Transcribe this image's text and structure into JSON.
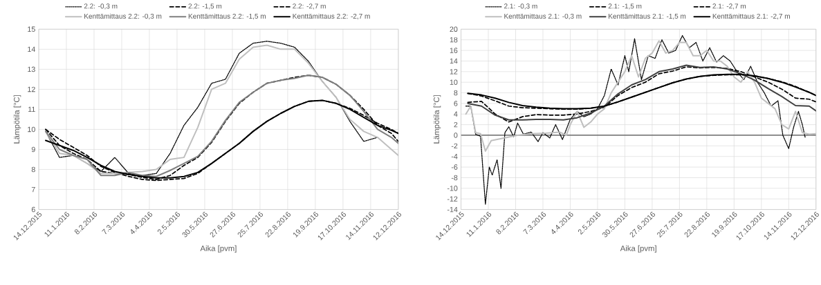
{
  "chart_data": [
    {
      "type": "line",
      "xlabel": "Aika [pvm]",
      "ylabel": "Lämpötila [°C]",
      "grid": true,
      "legend": "top",
      "xlim": [
        "2015-12-14",
        "2016-12-12"
      ],
      "xticks": [
        {
          "value": "2015-12-14",
          "label": "14.12.2015"
        },
        {
          "value": "2016-01-11",
          "label": "11.1.2016"
        },
        {
          "value": "2016-02-08",
          "label": "8.2.2016"
        },
        {
          "value": "2016-03-07",
          "label": "7.3.2016"
        },
        {
          "value": "2016-04-04",
          "label": "4.4.2016"
        },
        {
          "value": "2016-05-02",
          "label": "2.5.2016"
        },
        {
          "value": "2016-05-30",
          "label": "30.5.2016"
        },
        {
          "value": "2016-06-27",
          "label": "27.6.2016"
        },
        {
          "value": "2016-07-25",
          "label": "25.7.2016"
        },
        {
          "value": "2016-08-22",
          "label": "22.8.2016"
        },
        {
          "value": "2016-09-19",
          "label": "19.9.2016"
        },
        {
          "value": "2016-10-17",
          "label": "17.10.2016"
        },
        {
          "value": "2016-11-14",
          "label": "14.11.2016"
        },
        {
          "value": "2016-12-12",
          "label": "12.12.2016"
        }
      ],
      "ylim": [
        6,
        15
      ],
      "yticks": [
        6,
        7,
        8,
        9,
        10,
        11,
        12,
        13,
        14,
        15
      ],
      "x": [
        "2015-12-21",
        "2016-01-04",
        "2016-01-18",
        "2016-02-01",
        "2016-02-15",
        "2016-02-29",
        "2016-03-14",
        "2016-03-28",
        "2016-04-11",
        "2016-04-25",
        "2016-05-09",
        "2016-05-23",
        "2016-06-06",
        "2016-06-20",
        "2016-07-04",
        "2016-07-18",
        "2016-08-01",
        "2016-08-15",
        "2016-08-29",
        "2016-09-12",
        "2016-09-26",
        "2016-10-10",
        "2016-10-24",
        "2016-11-07",
        "2016-11-21",
        "2016-12-05",
        "2016-12-12"
      ],
      "series": [
        {
          "name": "2.2: -0,3 m",
          "color": "#000000",
          "line_style": "dotted",
          "values": [
            9.9,
            8.6,
            8.7,
            8.3,
            7.9,
            8.6,
            7.8,
            7.7,
            7.8,
            8.8,
            10.2,
            11.1,
            12.3,
            12.5,
            13.8,
            14.3,
            14.4,
            14.3,
            14.1,
            13.4,
            12.4,
            11.6,
            10.4,
            9.4,
            9.6,
            null,
            null
          ]
        },
        {
          "name": "2.2: -1,5 m",
          "color": "#000000",
          "line_style": "dashed",
          "values": [
            10.0,
            9.2,
            8.8,
            8.5,
            7.9,
            7.8,
            7.75,
            7.6,
            7.5,
            7.7,
            8.2,
            8.6,
            9.35,
            10.4,
            11.3,
            11.85,
            12.3,
            12.45,
            12.6,
            12.7,
            12.6,
            12.25,
            11.7,
            11.0,
            10.2,
            9.8,
            9.4
          ]
        },
        {
          "name": "2.2: -2,7 m",
          "color": "#000000",
          "line_style": "dashed",
          "values": [
            10.0,
            9.5,
            9.1,
            8.7,
            8.15,
            7.85,
            7.65,
            7.5,
            7.45,
            7.5,
            7.55,
            7.8,
            8.3,
            8.8,
            9.3,
            9.9,
            10.4,
            10.8,
            11.15,
            11.4,
            11.45,
            11.3,
            11.05,
            10.7,
            10.3,
            10.0,
            9.8
          ]
        },
        {
          "name": "Kenttämittaus 2.2: -0,3 m",
          "color": "#bfbfbf",
          "line_style": "solid",
          "values": [
            9.9,
            8.8,
            8.7,
            8.3,
            7.8,
            7.8,
            7.85,
            7.9,
            8.0,
            8.5,
            8.6,
            10.1,
            12.0,
            12.3,
            13.5,
            14.1,
            14.2,
            14.0,
            14.0,
            13.3,
            12.4,
            11.6,
            10.5,
            9.9,
            9.6,
            9.0,
            8.7
          ]
        },
        {
          "name": "Kenttämittaus 2.2: -1,5 m",
          "color": "#7f7f7f",
          "line_style": "solid",
          "values": [
            9.9,
            9.0,
            8.7,
            8.5,
            7.7,
            7.7,
            7.85,
            7.7,
            7.65,
            7.95,
            8.3,
            8.65,
            9.4,
            10.45,
            11.35,
            11.85,
            12.3,
            12.45,
            12.55,
            12.7,
            12.6,
            12.25,
            11.7,
            10.9,
            10.0,
            9.6,
            9.3
          ]
        },
        {
          "name": "Kenttämittaus 2.2: -2,7 m",
          "color": "#000000",
          "line_style": "solid",
          "values": [
            9.45,
            9.2,
            8.95,
            8.6,
            8.2,
            7.9,
            7.75,
            7.65,
            7.58,
            7.58,
            7.65,
            7.85,
            8.3,
            8.8,
            9.3,
            9.9,
            10.4,
            10.8,
            11.15,
            11.4,
            11.45,
            11.3,
            11.0,
            10.6,
            10.2,
            9.95,
            9.8
          ]
        }
      ]
    },
    {
      "type": "line",
      "xlabel": "Aika [pvm]",
      "ylabel": "Lämpötila [°C]",
      "grid": true,
      "legend": "top",
      "xlim": [
        "2015-12-14",
        "2016-12-12"
      ],
      "xticks": [
        {
          "value": "2015-12-14",
          "label": "14.12.2015"
        },
        {
          "value": "2016-01-11",
          "label": "11.1.2016"
        },
        {
          "value": "2016-02-08",
          "label": "8.2.2016"
        },
        {
          "value": "2016-03-07",
          "label": "7.3.2016"
        },
        {
          "value": "2016-04-04",
          "label": "4.4.2016"
        },
        {
          "value": "2016-05-02",
          "label": "2.5.2016"
        },
        {
          "value": "2016-05-30",
          "label": "30.5.2016"
        },
        {
          "value": "2016-06-27",
          "label": "27.6.2016"
        },
        {
          "value": "2016-07-25",
          "label": "25.7.2016"
        },
        {
          "value": "2016-08-22",
          "label": "22.8.2016"
        },
        {
          "value": "2016-09-19",
          "label": "19.9.2016"
        },
        {
          "value": "2016-10-17",
          "label": "17.10.2016"
        },
        {
          "value": "2016-11-14",
          "label": "14.11.2016"
        },
        {
          "value": "2016-12-12",
          "label": "12.12.2016"
        }
      ],
      "ylim": [
        -14,
        20
      ],
      "yticks": [
        -14,
        -12,
        -10,
        -8,
        -6,
        -4,
        -2,
        0,
        2,
        4,
        6,
        8,
        10,
        12,
        14,
        16,
        18,
        20
      ],
      "ref_lines": [
        {
          "axis": "y",
          "value": 0,
          "color": "#595959"
        }
      ],
      "x": [
        "2015-12-21",
        "2016-01-04",
        "2016-01-18",
        "2016-02-01",
        "2016-02-15",
        "2016-02-29",
        "2016-03-14",
        "2016-03-28",
        "2016-04-11",
        "2016-04-25",
        "2016-05-09",
        "2016-05-23",
        "2016-06-06",
        "2016-06-20",
        "2016-07-04",
        "2016-07-18",
        "2016-08-01",
        "2016-08-15",
        "2016-08-29",
        "2016-09-12",
        "2016-09-26",
        "2016-10-10",
        "2016-10-24",
        "2016-11-07",
        "2016-11-21",
        "2016-12-05",
        "2016-12-12"
      ],
      "series": [
        {
          "name": "2.1: -0,3 m",
          "color": "#000000",
          "line_style": "dotted",
          "x": [
            "2015-12-19",
            "2015-12-24",
            "2015-12-29",
            "2016-01-03",
            "2016-01-08",
            "2016-01-12",
            "2016-01-15",
            "2016-01-20",
            "2016-01-24",
            "2016-01-28",
            "2016-02-01",
            "2016-02-06",
            "2016-02-10",
            "2016-02-16",
            "2016-02-24",
            "2016-03-02",
            "2016-03-07",
            "2016-03-14",
            "2016-03-20",
            "2016-03-27",
            "2016-04-04",
            "2016-04-11",
            "2016-04-18",
            "2016-04-25",
            "2016-05-02",
            "2016-05-09",
            "2016-05-16",
            "2016-05-23",
            "2016-05-30",
            "2016-06-03",
            "2016-06-09",
            "2016-06-16",
            "2016-06-23",
            "2016-06-30",
            "2016-07-07",
            "2016-07-14",
            "2016-07-21",
            "2016-07-28",
            "2016-08-04",
            "2016-08-11",
            "2016-08-18",
            "2016-08-25",
            "2016-09-01",
            "2016-09-08",
            "2016-09-15",
            "2016-09-22",
            "2016-09-29",
            "2016-10-06",
            "2016-10-13",
            "2016-10-20",
            "2016-10-27",
            "2016-11-03",
            "2016-11-08",
            "2016-11-14",
            "2016-11-19",
            "2016-11-24",
            "2016-11-28",
            "2016-12-01"
          ],
          "values": [
            5.5,
            5.5,
            0.2,
            -0.2,
            -13.0,
            -6.0,
            -7.5,
            -4.6,
            -10.0,
            0.5,
            1.6,
            -0.3,
            2.3,
            0.2,
            0.6,
            -1.2,
            0.5,
            -0.5,
            2.0,
            -0.8,
            3.0,
            4.5,
            3.5,
            4.0,
            5.0,
            7.5,
            12.5,
            9.5,
            15.0,
            12.0,
            18.2,
            10.5,
            15.0,
            14.5,
            18.0,
            15.5,
            16.0,
            18.8,
            16.5,
            17.5,
            14.0,
            16.5,
            13.8,
            15.0,
            14.0,
            12.0,
            10.5,
            13.0,
            10.0,
            8.0,
            5.5,
            6.5,
            0.0,
            -2.5,
            1.5,
            4.5,
            2.0,
            -0.5
          ]
        },
        {
          "name": "2.1: -1,5 m",
          "color": "#000000",
          "line_style": "dashed",
          "values": [
            6.2,
            6.4,
            4.0,
            2.5,
            3.5,
            3.9,
            3.8,
            3.8,
            4.0,
            4.5,
            5.3,
            7.5,
            9.0,
            10.0,
            11.6,
            12.1,
            12.9,
            12.7,
            12.8,
            12.6,
            12.0,
            11.0,
            10.0,
            8.7,
            7.0,
            6.8,
            6.3
          ]
        },
        {
          "name": "2.1: -2,7 m",
          "color": "#000000",
          "line_style": "dashed",
          "values": [
            7.9,
            7.4,
            6.5,
            5.5,
            5.2,
            5.1,
            5.0,
            4.9,
            4.9,
            5.1,
            5.5,
            6.3,
            7.2,
            8.1,
            9.0,
            9.9,
            10.6,
            11.1,
            11.3,
            11.4,
            11.4,
            11.2,
            10.7,
            10.1,
            9.2,
            8.1,
            7.5
          ]
        },
        {
          "name": "Kenttämittaus 2.1: -0,3 m",
          "color": "#bfbfbf",
          "line_style": "solid",
          "x": [
            "2015-12-19",
            "2015-12-24",
            "2015-12-29",
            "2016-01-03",
            "2016-01-08",
            "2016-01-14",
            "2016-01-28",
            "2016-02-10",
            "2016-02-24",
            "2016-03-10",
            "2016-03-24",
            "2016-03-31",
            "2016-04-04",
            "2016-04-11",
            "2016-04-18",
            "2016-04-25",
            "2016-05-02",
            "2016-05-09",
            "2016-05-16",
            "2016-05-23",
            "2016-05-30",
            "2016-06-06",
            "2016-06-13",
            "2016-06-20",
            "2016-06-27",
            "2016-07-04",
            "2016-07-11",
            "2016-07-18",
            "2016-07-25",
            "2016-08-01",
            "2016-08-08",
            "2016-08-15",
            "2016-08-22",
            "2016-08-29",
            "2016-09-05",
            "2016-09-12",
            "2016-09-19",
            "2016-09-26",
            "2016-10-03",
            "2016-10-10",
            "2016-10-17",
            "2016-10-24",
            "2016-10-31",
            "2016-11-07",
            "2016-11-14",
            "2016-11-21",
            "2016-11-28",
            "2016-12-05",
            "2016-12-12"
          ],
          "values": [
            4.0,
            5.5,
            0.5,
            0.3,
            -3.0,
            -1.0,
            -0.5,
            0.0,
            0.3,
            0.4,
            0.6,
            0.0,
            2.0,
            4.5,
            1.5,
            2.5,
            4.0,
            5.0,
            8.0,
            10.0,
            12.0,
            15.0,
            11.0,
            14.5,
            15.5,
            17.8,
            15.5,
            16.0,
            17.5,
            17.5,
            15.0,
            15.0,
            16.0,
            14.0,
            14.0,
            13.0,
            11.0,
            10.0,
            12.0,
            10.0,
            7.0,
            6.0,
            5.0,
            2.0,
            1.2,
            4.5,
            0.5,
            0.2,
            0.3
          ]
        },
        {
          "name": "Kenttämittaus 2.1: -1,5 m",
          "color": "#404040",
          "line_style": "solid",
          "values": [
            6.0,
            5.5,
            3.8,
            2.9,
            2.9,
            3.0,
            3.0,
            2.9,
            3.3,
            4.2,
            5.5,
            7.8,
            9.5,
            10.5,
            12.0,
            12.5,
            13.2,
            12.8,
            12.9,
            12.5,
            11.6,
            10.4,
            8.8,
            7.3,
            5.6,
            5.5,
            4.6
          ]
        },
        {
          "name": "Kenttämittaus 2.1: -2,7 m",
          "color": "#000000",
          "line_style": "solid",
          "values": [
            7.9,
            7.6,
            7.0,
            6.2,
            5.6,
            5.3,
            5.1,
            5.0,
            5.0,
            5.1,
            5.5,
            6.3,
            7.2,
            8.1,
            9.0,
            9.9,
            10.6,
            11.1,
            11.4,
            11.5,
            11.5,
            11.2,
            10.7,
            10.0,
            9.1,
            8.1,
            7.5
          ]
        }
      ]
    }
  ]
}
